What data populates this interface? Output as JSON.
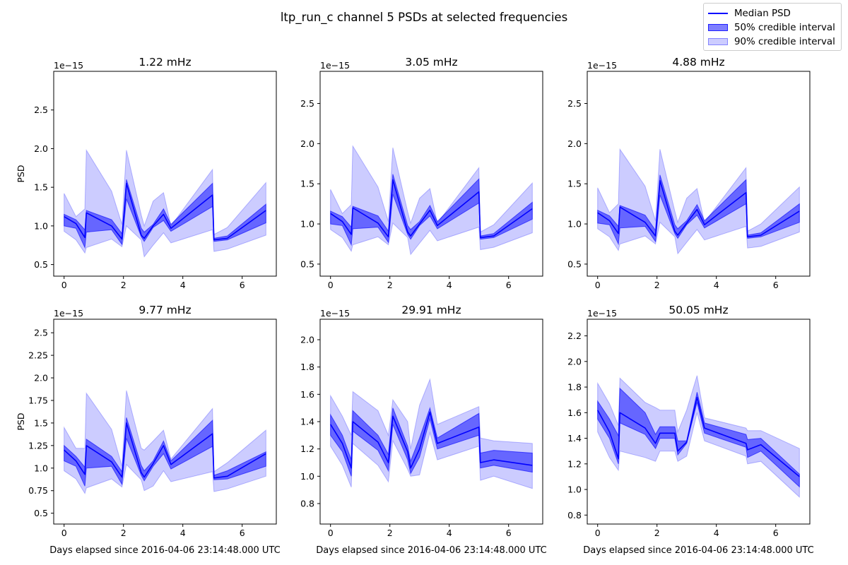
{
  "figure": {
    "suptitle": "ltp_run_c channel 5 PSDs at selected frequencies",
    "legend": [
      {
        "label": "Median PSD",
        "kind": "line"
      },
      {
        "label": "50% credible interval",
        "kind": "band50"
      },
      {
        "label": "90% credible interval",
        "kind": "band90"
      }
    ],
    "colors": {
      "median": "#0000ff",
      "band50": "rgba(0,0,255,0.5)",
      "band90": "rgba(0,0,255,0.2)"
    }
  },
  "chart_data": [
    {
      "type": "area",
      "title": "1.22 mHz",
      "xlabel": "",
      "ylabel": "PSD",
      "offset_text": "1e−15",
      "xlim": [
        -0.35,
        7.15
      ],
      "ylim": [
        0.35,
        3.0
      ],
      "xticks": [
        0,
        2,
        4,
        6
      ],
      "yticks": [
        0.5,
        1.0,
        1.5,
        2.0,
        2.5
      ],
      "x": [
        0,
        0.4,
        0.7,
        0.75,
        1.6,
        1.95,
        2.1,
        2.6,
        2.7,
        3.0,
        3.35,
        3.6,
        5.0,
        5.05,
        5.5,
        6.8
      ],
      "median": [
        1.12,
        1.03,
        0.85,
        1.17,
        1.0,
        0.83,
        1.55,
        0.88,
        0.84,
        1.0,
        1.15,
        0.97,
        1.4,
        0.82,
        0.84,
        1.2
      ],
      "q25": [
        1.0,
        0.97,
        0.72,
        0.92,
        0.95,
        0.76,
        1.35,
        0.86,
        0.8,
        0.98,
        1.07,
        0.93,
        1.25,
        0.8,
        0.82,
        1.04
      ],
      "q75": [
        1.15,
        1.08,
        0.95,
        1.2,
        1.08,
        0.9,
        1.6,
        0.97,
        0.92,
        1.02,
        1.22,
        1.02,
        1.55,
        0.84,
        0.87,
        1.28
      ],
      "q05": [
        0.93,
        0.82,
        0.65,
        0.72,
        0.83,
        0.73,
        1.0,
        0.82,
        0.6,
        0.75,
        0.91,
        0.78,
        0.95,
        0.67,
        0.7,
        0.88
      ],
      "q95": [
        1.42,
        1.12,
        1.22,
        1.98,
        1.45,
        1.02,
        1.98,
        1.14,
        1.0,
        1.32,
        1.43,
        1.0,
        1.73,
        0.89,
        0.98,
        1.56
      ]
    },
    {
      "type": "area",
      "title": "3.05 mHz",
      "xlabel": "",
      "ylabel": "",
      "offset_text": "1e−15",
      "xlim": [
        -0.35,
        7.15
      ],
      "ylim": [
        0.35,
        2.9
      ],
      "xticks": [
        0,
        2,
        4,
        6
      ],
      "yticks": [
        0.5,
        1.0,
        1.5,
        2.0,
        2.5
      ],
      "x": [
        0,
        0.4,
        0.7,
        0.75,
        1.6,
        1.95,
        2.1,
        2.6,
        2.7,
        3.0,
        3.35,
        3.6,
        5.0,
        5.05,
        5.5,
        6.8
      ],
      "median": [
        1.13,
        1.03,
        0.87,
        1.2,
        1.01,
        0.84,
        1.55,
        0.9,
        0.85,
        1.0,
        1.17,
        0.98,
        1.4,
        0.83,
        0.85,
        1.19
      ],
      "q25": [
        1.0,
        0.98,
        0.74,
        0.94,
        0.96,
        0.77,
        1.37,
        0.87,
        0.81,
        0.98,
        1.1,
        0.94,
        1.26,
        0.81,
        0.83,
        1.06
      ],
      "q75": [
        1.16,
        1.09,
        0.96,
        1.22,
        1.1,
        0.91,
        1.62,
        0.98,
        0.93,
        1.03,
        1.23,
        1.03,
        1.56,
        0.85,
        0.88,
        1.27
      ],
      "q05": [
        0.93,
        0.83,
        0.66,
        0.74,
        0.84,
        0.74,
        1.01,
        0.83,
        0.62,
        0.76,
        0.92,
        0.79,
        0.96,
        0.68,
        0.71,
        0.89
      ],
      "q95": [
        1.43,
        1.13,
        1.24,
        1.97,
        1.46,
        1.03,
        1.95,
        1.15,
        1.01,
        1.32,
        1.44,
        1.01,
        1.7,
        0.9,
        0.99,
        1.51
      ]
    },
    {
      "type": "area",
      "title": "4.88 mHz",
      "xlabel": "",
      "ylabel": "",
      "offset_text": "1e−15",
      "xlim": [
        -0.35,
        7.15
      ],
      "ylim": [
        0.35,
        2.9
      ],
      "xticks": [
        0,
        2,
        4,
        6
      ],
      "yticks": [
        0.5,
        1.0,
        1.5,
        2.0,
        2.5
      ],
      "x": [
        0,
        0.4,
        0.7,
        0.75,
        1.6,
        1.95,
        2.1,
        2.6,
        2.7,
        3.0,
        3.35,
        3.6,
        5.0,
        5.05,
        5.5,
        6.8
      ],
      "median": [
        1.14,
        1.04,
        0.88,
        1.21,
        1.02,
        0.85,
        1.54,
        0.91,
        0.86,
        1.01,
        1.18,
        0.99,
        1.39,
        0.84,
        0.86,
        1.16
      ],
      "q25": [
        1.01,
        0.99,
        0.75,
        0.95,
        0.97,
        0.78,
        1.36,
        0.88,
        0.82,
        0.99,
        1.11,
        0.95,
        1.25,
        0.82,
        0.84,
        1.02
      ],
      "q75": [
        1.17,
        1.1,
        0.97,
        1.23,
        1.11,
        0.92,
        1.61,
        0.99,
        0.94,
        1.04,
        1.24,
        1.04,
        1.55,
        0.86,
        0.89,
        1.25
      ],
      "q05": [
        0.94,
        0.84,
        0.67,
        0.75,
        0.85,
        0.75,
        1.02,
        0.84,
        0.63,
        0.77,
        0.93,
        0.8,
        0.97,
        0.7,
        0.72,
        0.9
      ],
      "q95": [
        1.45,
        1.14,
        1.25,
        1.93,
        1.47,
        1.04,
        1.93,
        1.16,
        1.02,
        1.32,
        1.44,
        1.02,
        1.7,
        0.91,
        1.0,
        1.46
      ]
    },
    {
      "type": "area",
      "title": "9.77 mHz",
      "xlabel": "Days elapsed since 2016-04-06 23:14:48.000 UTC",
      "ylabel": "PSD",
      "offset_text": "1e−15",
      "xlim": [
        -0.35,
        7.15
      ],
      "ylim": [
        0.38,
        2.65
      ],
      "xticks": [
        0,
        2,
        4,
        6
      ],
      "yticks": [
        0.5,
        0.75,
        1.0,
        1.25,
        1.5,
        1.75,
        2.0,
        2.25,
        2.5
      ],
      "x": [
        0,
        0.4,
        0.7,
        0.75,
        1.6,
        1.95,
        2.1,
        2.6,
        2.7,
        3.0,
        3.35,
        3.6,
        5.0,
        5.05,
        5.5,
        6.8
      ],
      "median": [
        1.2,
        1.08,
        0.93,
        1.25,
        1.07,
        0.9,
        1.5,
        0.95,
        0.9,
        1.05,
        1.25,
        1.04,
        1.38,
        0.89,
        0.91,
        1.16
      ],
      "q25": [
        1.08,
        1.02,
        0.8,
        1.0,
        1.02,
        0.82,
        1.33,
        0.92,
        0.86,
        1.02,
        1.16,
        0.99,
        1.24,
        0.87,
        0.88,
        1.02
      ],
      "q75": [
        1.25,
        1.13,
        1.01,
        1.32,
        1.13,
        0.96,
        1.56,
        1.03,
        0.97,
        1.08,
        1.3,
        1.08,
        1.53,
        0.92,
        0.97,
        1.18
      ],
      "q05": [
        0.97,
        0.88,
        0.72,
        0.78,
        0.88,
        0.79,
        1.04,
        0.87,
        0.75,
        0.8,
        0.97,
        0.85,
        0.96,
        0.74,
        0.77,
        0.91
      ],
      "q95": [
        1.45,
        1.22,
        1.22,
        1.83,
        1.43,
        1.02,
        1.86,
        1.22,
        1.2,
        1.3,
        1.42,
        1.1,
        1.66,
        0.96,
        1.06,
        1.42
      ]
    },
    {
      "type": "area",
      "title": "29.91 mHz",
      "xlabel": "Days elapsed since 2016-04-06 23:14:48.000 UTC",
      "ylabel": "",
      "offset_text": "1e−15",
      "xlim": [
        -0.35,
        7.15
      ],
      "ylim": [
        0.65,
        2.15
      ],
      "xticks": [
        0,
        2,
        4,
        6
      ],
      "yticks": [
        0.8,
        1.0,
        1.2,
        1.4,
        1.6,
        1.8,
        2.0
      ],
      "x": [
        0,
        0.4,
        0.7,
        0.75,
        1.6,
        1.95,
        2.1,
        2.6,
        2.7,
        3.0,
        3.35,
        3.6,
        5.0,
        5.05,
        5.5,
        6.8
      ],
      "median": [
        1.38,
        1.24,
        1.06,
        1.4,
        1.25,
        1.1,
        1.44,
        1.18,
        1.06,
        1.2,
        1.47,
        1.24,
        1.36,
        1.1,
        1.12,
        1.08
      ],
      "q25": [
        1.3,
        1.18,
        1.0,
        1.33,
        1.19,
        1.04,
        1.38,
        1.12,
        1.02,
        1.14,
        1.42,
        1.2,
        1.3,
        1.06,
        1.08,
        1.03
      ],
      "q75": [
        1.45,
        1.3,
        1.12,
        1.48,
        1.3,
        1.16,
        1.5,
        1.22,
        1.11,
        1.28,
        1.5,
        1.28,
        1.46,
        1.17,
        1.19,
        1.17
      ],
      "q05": [
        1.22,
        1.08,
        0.92,
        1.24,
        1.08,
        0.96,
        1.26,
        1.05,
        1.0,
        1.01,
        1.32,
        1.12,
        1.22,
        0.97,
        1.0,
        0.91
      ],
      "q95": [
        1.59,
        1.44,
        1.3,
        1.62,
        1.48,
        1.3,
        1.56,
        1.4,
        1.2,
        1.52,
        1.71,
        1.38,
        1.51,
        1.28,
        1.26,
        1.24
      ]
    },
    {
      "type": "area",
      "title": "50.05 mHz",
      "xlabel": "Days elapsed since 2016-04-06 23:14:48.000 UTC",
      "ylabel": "",
      "offset_text": "1e−15",
      "xlim": [
        -0.35,
        7.15
      ],
      "ylim": [
        0.73,
        2.33
      ],
      "xticks": [
        0,
        2,
        4,
        6
      ],
      "yticks": [
        0.8,
        1.0,
        1.2,
        1.4,
        1.6,
        1.8,
        2.0,
        2.2
      ],
      "x": [
        0,
        0.4,
        0.7,
        0.75,
        1.6,
        1.95,
        2.1,
        2.6,
        2.7,
        3.0,
        3.35,
        3.6,
        5.0,
        5.05,
        5.5,
        6.8
      ],
      "median": [
        1.62,
        1.45,
        1.24,
        1.6,
        1.48,
        1.36,
        1.44,
        1.44,
        1.3,
        1.37,
        1.72,
        1.48,
        1.36,
        1.31,
        1.35,
        1.1
      ],
      "q25": [
        1.55,
        1.4,
        1.2,
        1.52,
        1.43,
        1.32,
        1.4,
        1.4,
        1.27,
        1.36,
        1.68,
        1.44,
        1.33,
        1.25,
        1.3,
        1.02
      ],
      "q75": [
        1.69,
        1.55,
        1.42,
        1.79,
        1.6,
        1.43,
        1.49,
        1.49,
        1.38,
        1.38,
        1.76,
        1.52,
        1.43,
        1.39,
        1.4,
        1.12
      ],
      "q05": [
        1.45,
        1.25,
        1.15,
        1.3,
        1.25,
        1.22,
        1.3,
        1.3,
        1.22,
        1.26,
        1.6,
        1.38,
        1.26,
        1.2,
        1.22,
        0.94
      ],
      "q95": [
        1.83,
        1.67,
        1.5,
        1.87,
        1.68,
        1.64,
        1.62,
        1.62,
        1.45,
        1.62,
        1.89,
        1.56,
        1.48,
        1.46,
        1.46,
        1.32
      ]
    }
  ]
}
